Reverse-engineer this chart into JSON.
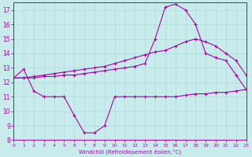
{
  "xlabel": "Windchill (Refroidissement éolien,°C)",
  "xlim": [
    0,
    23
  ],
  "ylim": [
    8,
    17.5
  ],
  "yticks": [
    8,
    9,
    10,
    11,
    12,
    13,
    14,
    15,
    16,
    17
  ],
  "xticks": [
    0,
    1,
    2,
    3,
    4,
    5,
    6,
    7,
    8,
    9,
    10,
    11,
    12,
    13,
    14,
    15,
    16,
    17,
    18,
    19,
    20,
    21,
    22,
    23
  ],
  "background_color": "#c8ecec",
  "grid_color": "#b0dada",
  "line_color": "#aa00aa",
  "line_width": 0.8,
  "marker": "+",
  "marker_size": 3,
  "series1_x": [
    0,
    1,
    2,
    3,
    4,
    5,
    6,
    7,
    8,
    9,
    10,
    11,
    12,
    13,
    14,
    15,
    16,
    17,
    18,
    19,
    20,
    21,
    22,
    23
  ],
  "series1_y": [
    12.3,
    12.9,
    11.4,
    11.0,
    11.0,
    11.0,
    9.7,
    8.5,
    8.5,
    9.0,
    11.0,
    11.0,
    11.0,
    11.0,
    11.0,
    11.0,
    11.0,
    11.1,
    11.2,
    11.2,
    11.3,
    11.3,
    11.4,
    11.5
  ],
  "series2_x": [
    0,
    1,
    2,
    3,
    4,
    5,
    6,
    7,
    8,
    9,
    10,
    11,
    12,
    13,
    14,
    15,
    16,
    17,
    18,
    19,
    20,
    21,
    22,
    23
  ],
  "series2_y": [
    12.3,
    12.3,
    12.4,
    12.5,
    12.6,
    12.7,
    12.8,
    12.9,
    13.0,
    13.1,
    13.3,
    13.5,
    13.7,
    13.9,
    14.1,
    14.2,
    14.5,
    14.8,
    15.0,
    14.8,
    14.5,
    14.0,
    13.5,
    12.5
  ],
  "series3_x": [
    0,
    1,
    2,
    3,
    4,
    5,
    6,
    7,
    8,
    9,
    10,
    11,
    12,
    13,
    14,
    15,
    16,
    17,
    18,
    19,
    20,
    21,
    22,
    23
  ],
  "series3_y": [
    12.3,
    12.3,
    12.3,
    12.4,
    12.4,
    12.5,
    12.5,
    12.6,
    12.7,
    12.8,
    12.9,
    13.0,
    13.1,
    13.3,
    15.0,
    17.2,
    17.4,
    17.0,
    16.0,
    14.0,
    13.7,
    13.5,
    12.5,
    11.5
  ]
}
